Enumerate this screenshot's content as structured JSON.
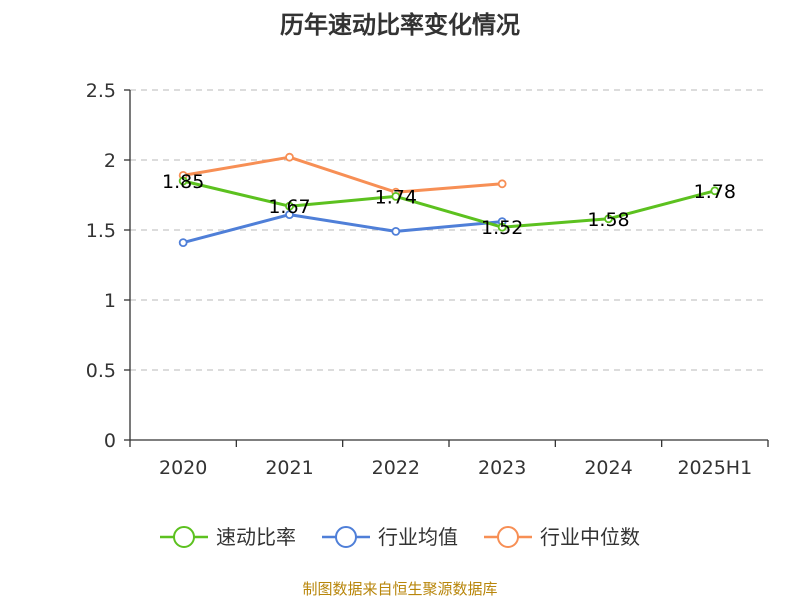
{
  "chart_data": {
    "type": "line",
    "title": "历年速动比率变化情况",
    "source": "制图数据来自恒生聚源数据库",
    "categories": [
      "2020",
      "2021",
      "2022",
      "2023",
      "2024",
      "2025H1"
    ],
    "ylim": [
      0,
      2.5
    ],
    "yticks": [
      "0",
      "0.5",
      "1",
      "1.5",
      "2",
      "2.5"
    ],
    "grid": true,
    "legend_position": "bottom",
    "series": [
      {
        "name": "速动比率",
        "color": "#5cc11f",
        "values": [
          1.85,
          1.67,
          1.74,
          1.52,
          1.58,
          1.78
        ],
        "labels": [
          "1.85",
          "1.67",
          "1.74",
          "1.52",
          "1.58",
          "1.78"
        ]
      },
      {
        "name": "行业均值",
        "color": "#4f7fd8",
        "values": [
          1.41,
          1.61,
          1.49,
          1.56,
          null,
          null
        ]
      },
      {
        "name": "行业中位数",
        "color": "#f78f55",
        "values": [
          1.89,
          2.02,
          1.77,
          1.83,
          null,
          null
        ]
      }
    ]
  }
}
